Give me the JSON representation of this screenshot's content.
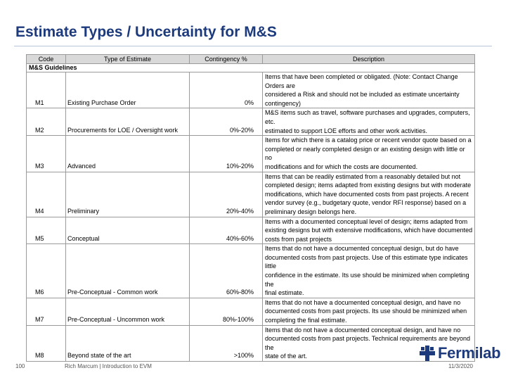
{
  "slide": {
    "title": "Estimate Types / Uncertainty for M&S",
    "page_number": "100",
    "footer_text": "Rich Marcum | Introduction to EVM",
    "date": "11/3/2020",
    "logo_text": "Fermilab",
    "brand_color": "#1c3a7c"
  },
  "table": {
    "headers": {
      "code": "Code",
      "type": "Type of Estimate",
      "contingency": "Contingency %",
      "description": "Description"
    },
    "section_label": "M&S Guidelines",
    "rows": [
      {
        "code": "M1",
        "type": "Existing Purchase Order",
        "contingency": "0%",
        "description": "Items that have been completed or obligated. (Note: Contact Change Orders are\nconsidered a Risk and should not be included as estimate uncertainty\ncontingency)"
      },
      {
        "code": "M2",
        "type": "Procurements for LOE / Oversight work",
        "contingency": "0%-20%",
        "description": "M&S items such as travel, software purchases and upgrades, computers, etc.\nestimated to support LOE efforts and other work activities."
      },
      {
        "code": "M3",
        "type": "Advanced",
        "contingency": "10%-20%",
        "description": "Items for which there is a catalog price or recent vendor quote based on a\ncompleted or nearly completed design or an existing design with little or no\nmodifications and for which the costs are documented."
      },
      {
        "code": "M4",
        "type": "Preliminary",
        "contingency": "20%-40%",
        "description": "Items that can be readily estimated from a reasonably detailed but not\ncompleted design; items adapted from existing designs but with moderate\nmodifications, which have documented costs from past projects. A recent\nvendor survey (e.g., budgetary quote, vendor RFI response) based on a\npreliminary design belongs here."
      },
      {
        "code": "M5",
        "type": "Conceptual",
        "contingency": "40%-60%",
        "description": "Items with a documented conceptual level of design; items adapted from\nexisting designs but with extensive modifications, which have documented\ncosts from past projects"
      },
      {
        "code": "M6",
        "type": "Pre-Conceptual - Common work",
        "contingency": "60%-80%",
        "description": "Items that do not have a documented conceptual design, but do have\ndocumented costs from past projects. Use of this estimate type indicates little\nconfidence in the estimate. Its use should be minimized when completing the\nfinal estimate."
      },
      {
        "code": "M7",
        "type": "Pre-Conceptual - Uncommon work",
        "contingency": "80%-100%",
        "description": "Items that do not have a documented conceptual design, and have no\ndocumented costs from past projects. Its use should be minimized when\ncompleting the final estimate."
      },
      {
        "code": "M8",
        "type": "Beyond state of the art",
        "contingency": ">100%",
        "description": "Items that do not have a documented conceptual design, and have no\ndocumented costs from past projects. Technical requirements are beyond the\nstate of the art."
      }
    ]
  }
}
